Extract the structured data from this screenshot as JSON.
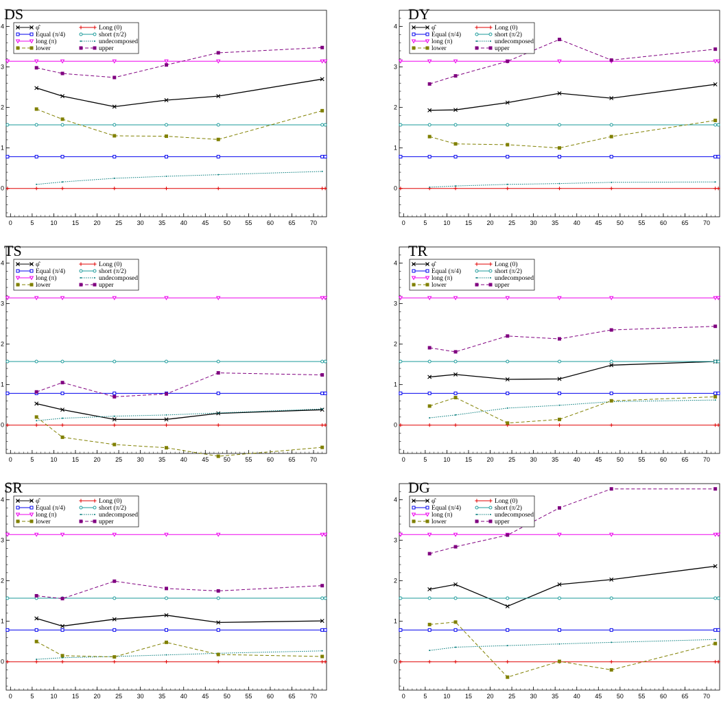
{
  "chart_data": [
    {
      "type": "line",
      "title": "DS",
      "x": [
        6,
        12,
        24,
        36,
        48,
        72
      ],
      "xlim": [
        -1,
        73
      ],
      "ylim": [
        -0.7,
        4.4
      ],
      "xticks": [
        "0",
        "5",
        "10",
        "15",
        "20",
        "25",
        "30",
        "35",
        "40",
        "45",
        "50",
        "55",
        "60",
        "65",
        "70"
      ],
      "yticks": [
        "0",
        "1",
        "2",
        "3",
        "4"
      ],
      "grid": false,
      "legend": "top-left",
      "series": [
        {
          "name": "φ̂",
          "values": [
            2.48,
            2.28,
            2.02,
            2.18,
            2.28,
            2.7
          ]
        },
        {
          "name": "Long (0)",
          "values": [
            0,
            0,
            0,
            0,
            0,
            0
          ]
        },
        {
          "name": "Equal (π/4)",
          "values": [
            0.785,
            0.785,
            0.785,
            0.785,
            0.785,
            0.785
          ]
        },
        {
          "name": "short (π/2)",
          "values": [
            1.571,
            1.571,
            1.571,
            1.571,
            1.571,
            1.571
          ]
        },
        {
          "name": "long (π)",
          "values": [
            3.1416,
            3.1416,
            3.1416,
            3.1416,
            3.1416,
            3.1416
          ]
        },
        {
          "name": "undecomposed",
          "values": [
            0.1,
            0.16,
            0.25,
            0.3,
            0.34,
            0.42
          ]
        },
        {
          "name": "lower",
          "values": [
            1.96,
            1.71,
            1.3,
            1.29,
            1.21,
            1.92
          ]
        },
        {
          "name": "upper",
          "values": [
            2.98,
            2.84,
            2.74,
            3.05,
            3.35,
            3.48
          ]
        }
      ]
    },
    {
      "type": "line",
      "title": "DY",
      "x": [
        6,
        12,
        24,
        36,
        48,
        72
      ],
      "xlim": [
        -1,
        73
      ],
      "ylim": [
        -0.7,
        4.4
      ],
      "xticks": [
        "0",
        "5",
        "10",
        "15",
        "20",
        "25",
        "30",
        "35",
        "40",
        "45",
        "50",
        "55",
        "60",
        "65",
        "70"
      ],
      "yticks": [
        "0",
        "1",
        "2",
        "3",
        "4"
      ],
      "grid": false,
      "legend": "top-left",
      "series": [
        {
          "name": "φ̂",
          "values": [
            1.93,
            1.94,
            2.12,
            2.35,
            2.23,
            2.57
          ]
        },
        {
          "name": "Long (0)",
          "values": [
            0,
            0,
            0,
            0,
            0,
            0
          ]
        },
        {
          "name": "Equal (π/4)",
          "values": [
            0.785,
            0.785,
            0.785,
            0.785,
            0.785,
            0.785
          ]
        },
        {
          "name": "short (π/2)",
          "values": [
            1.571,
            1.571,
            1.571,
            1.571,
            1.571,
            1.571
          ]
        },
        {
          "name": "long (π)",
          "values": [
            3.1416,
            3.1416,
            3.1416,
            3.1416,
            3.1416,
            3.1416
          ]
        },
        {
          "name": "undecomposed",
          "values": [
            0.03,
            0.06,
            0.1,
            0.12,
            0.15,
            0.16
          ]
        },
        {
          "name": "lower",
          "values": [
            1.28,
            1.1,
            1.08,
            1.0,
            1.28,
            1.68
          ]
        },
        {
          "name": "upper",
          "values": [
            2.58,
            2.78,
            3.14,
            3.68,
            3.17,
            3.44
          ]
        }
      ]
    },
    {
      "type": "line",
      "title": "TS",
      "x": [
        6,
        12,
        24,
        36,
        48,
        72
      ],
      "xlim": [
        -1,
        73
      ],
      "ylim": [
        -0.7,
        4.4
      ],
      "xticks": [
        "0",
        "5",
        "10",
        "15",
        "20",
        "25",
        "30",
        "35",
        "40",
        "45",
        "50",
        "55",
        "60",
        "65",
        "70"
      ],
      "yticks": [
        "0",
        "1",
        "2",
        "3",
        "4"
      ],
      "grid": false,
      "legend": "top-left",
      "series": [
        {
          "name": "φ̂",
          "values": [
            0.53,
            0.38,
            0.14,
            0.14,
            0.29,
            0.38
          ]
        },
        {
          "name": "Long (0)",
          "values": [
            0,
            0,
            0,
            0,
            0,
            0
          ]
        },
        {
          "name": "Equal (π/4)",
          "values": [
            0.785,
            0.785,
            0.785,
            0.785,
            0.785,
            0.785
          ]
        },
        {
          "name": "short (π/2)",
          "values": [
            1.571,
            1.571,
            1.571,
            1.571,
            1.571,
            1.571
          ]
        },
        {
          "name": "long (π)",
          "values": [
            3.1416,
            3.1416,
            3.1416,
            3.1416,
            3.1416,
            3.1416
          ]
        },
        {
          "name": "undecomposed",
          "values": [
            0.11,
            0.17,
            0.22,
            0.25,
            0.3,
            0.4
          ]
        },
        {
          "name": "lower",
          "values": [
            0.2,
            -0.3,
            -0.48,
            -0.56,
            -0.77,
            -0.55
          ]
        },
        {
          "name": "upper",
          "values": [
            0.82,
            1.05,
            0.7,
            0.77,
            1.29,
            1.24
          ]
        }
      ]
    },
    {
      "type": "line",
      "title": "TR",
      "x": [
        6,
        12,
        24,
        36,
        48,
        72
      ],
      "xlim": [
        -1,
        73
      ],
      "ylim": [
        -0.7,
        4.4
      ],
      "xticks": [
        "0",
        "5",
        "10",
        "15",
        "20",
        "25",
        "30",
        "35",
        "40",
        "45",
        "50",
        "55",
        "60",
        "65",
        "70"
      ],
      "yticks": [
        "0",
        "1",
        "2",
        "3",
        "4"
      ],
      "grid": false,
      "legend": "top-left",
      "series": [
        {
          "name": "φ̂",
          "values": [
            1.19,
            1.25,
            1.13,
            1.14,
            1.48,
            1.57
          ]
        },
        {
          "name": "Long (0)",
          "values": [
            0,
            0,
            0,
            0,
            0,
            0
          ]
        },
        {
          "name": "Equal (π/4)",
          "values": [
            0.785,
            0.785,
            0.785,
            0.785,
            0.785,
            0.785
          ]
        },
        {
          "name": "short (π/2)",
          "values": [
            1.571,
            1.571,
            1.571,
            1.571,
            1.571,
            1.571
          ]
        },
        {
          "name": "long (π)",
          "values": [
            3.1416,
            3.1416,
            3.1416,
            3.1416,
            3.1416,
            3.1416
          ]
        },
        {
          "name": "undecomposed",
          "values": [
            0.18,
            0.25,
            0.42,
            0.49,
            0.58,
            0.62
          ]
        },
        {
          "name": "lower",
          "values": [
            0.47,
            0.68,
            0.05,
            0.14,
            0.6,
            0.7
          ]
        },
        {
          "name": "upper",
          "values": [
            1.91,
            1.81,
            2.2,
            2.13,
            2.35,
            2.44
          ]
        }
      ]
    },
    {
      "type": "line",
      "title": "SR",
      "x": [
        6,
        12,
        24,
        36,
        48,
        72
      ],
      "xlim": [
        -1,
        73
      ],
      "ylim": [
        -0.7,
        4.4
      ],
      "xticks": [
        "0",
        "5",
        "10",
        "15",
        "20",
        "25",
        "30",
        "35",
        "40",
        "45",
        "50",
        "55",
        "60",
        "65",
        "70"
      ],
      "yticks": [
        "0",
        "1",
        "2",
        "3",
        "4"
      ],
      "grid": false,
      "legend": "top-left",
      "series": [
        {
          "name": "φ̂",
          "values": [
            1.07,
            0.88,
            1.05,
            1.15,
            0.97,
            1.01
          ]
        },
        {
          "name": "Long (0)",
          "values": [
            0,
            0,
            0,
            0,
            0,
            0
          ]
        },
        {
          "name": "Equal (π/4)",
          "values": [
            0.785,
            0.785,
            0.785,
            0.785,
            0.785,
            0.785
          ]
        },
        {
          "name": "short (π/2)",
          "values": [
            1.571,
            1.571,
            1.571,
            1.571,
            1.571,
            1.571
          ]
        },
        {
          "name": "long (π)",
          "values": [
            3.1416,
            3.1416,
            3.1416,
            3.1416,
            3.1416,
            3.1416
          ]
        },
        {
          "name": "undecomposed",
          "values": [
            0.06,
            0.1,
            0.13,
            0.17,
            0.21,
            0.27
          ]
        },
        {
          "name": "lower",
          "values": [
            0.5,
            0.15,
            0.12,
            0.48,
            0.18,
            0.13
          ]
        },
        {
          "name": "upper",
          "values": [
            1.63,
            1.56,
            1.99,
            1.81,
            1.75,
            1.88
          ]
        }
      ]
    },
    {
      "type": "line",
      "title": "DG",
      "x": [
        6,
        12,
        24,
        36,
        48,
        72
      ],
      "xlim": [
        -1,
        73
      ],
      "ylim": [
        -0.7,
        4.4
      ],
      "xticks": [
        "0",
        "5",
        "10",
        "15",
        "20",
        "25",
        "30",
        "35",
        "40",
        "45",
        "50",
        "55",
        "60",
        "65",
        "70"
      ],
      "yticks": [
        "0",
        "1",
        "2",
        "3",
        "4"
      ],
      "grid": false,
      "legend": "top-left",
      "series": [
        {
          "name": "φ̂",
          "values": [
            1.79,
            1.91,
            1.37,
            1.91,
            2.03,
            2.36
          ]
        },
        {
          "name": "Long (0)",
          "values": [
            0,
            0,
            0,
            0,
            0,
            0
          ]
        },
        {
          "name": "Equal (π/4)",
          "values": [
            0.785,
            0.785,
            0.785,
            0.785,
            0.785,
            0.785
          ]
        },
        {
          "name": "short (π/2)",
          "values": [
            1.571,
            1.571,
            1.571,
            1.571,
            1.571,
            1.571
          ]
        },
        {
          "name": "long (π)",
          "values": [
            3.1416,
            3.1416,
            3.1416,
            3.1416,
            3.1416,
            3.1416
          ]
        },
        {
          "name": "undecomposed",
          "values": [
            0.28,
            0.36,
            0.4,
            0.44,
            0.48,
            0.55
          ]
        },
        {
          "name": "lower",
          "values": [
            0.92,
            0.98,
            -0.38,
            0.01,
            -0.2,
            0.45
          ]
        },
        {
          "name": "upper",
          "values": [
            2.67,
            2.84,
            3.13,
            3.8,
            4.27,
            4.27
          ]
        }
      ]
    }
  ],
  "style": {
    "colors": {
      "φ̂": "#000000",
      "Long (0)": "#e00000",
      "Equal (π/4)": "#0000ee",
      "short (π/2)": "#1a9a9a",
      "long (π)": "#ee00ee",
      "undecomposed": "#007a7a",
      "lower": "#808000",
      "upper": "#800080"
    }
  }
}
